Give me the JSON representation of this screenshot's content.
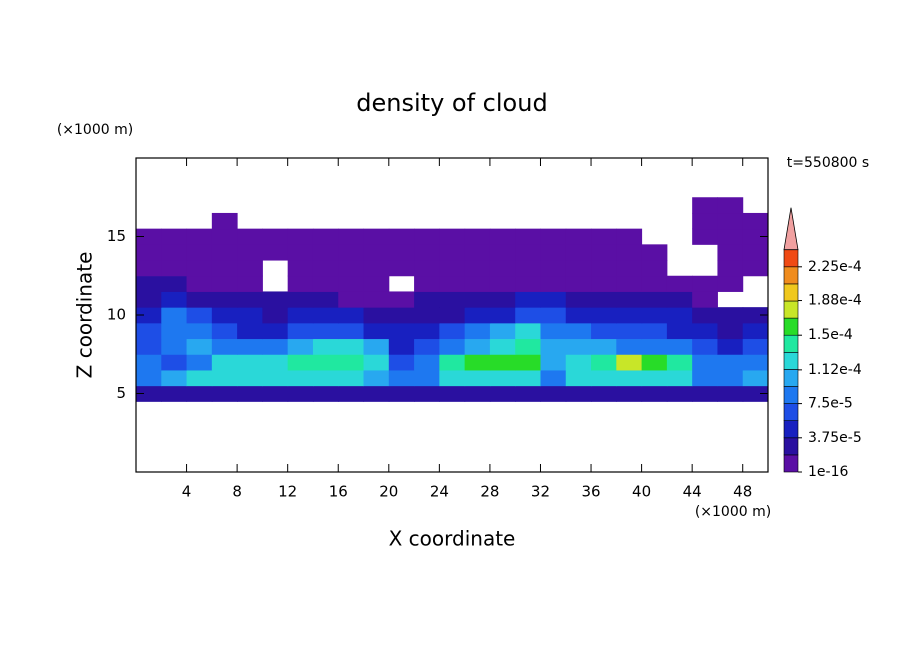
{
  "chart_data": {
    "type": "contour",
    "title": "density of cloud",
    "x_label": "X coordinate",
    "y_label": "Z coordinate",
    "x_unit_label": "(×1000 m)",
    "y_unit_label": "(×1000 m)",
    "time_label": "t=550800 s",
    "xlim": [
      0,
      50
    ],
    "ylim": [
      0,
      20
    ],
    "xticks": [
      4,
      8,
      12,
      16,
      20,
      24,
      28,
      32,
      36,
      40,
      44,
      48
    ],
    "yticks": [
      5,
      10,
      15
    ],
    "x": [
      1,
      3,
      5,
      7,
      9,
      11,
      13,
      15,
      17,
      19,
      21,
      23,
      25,
      27,
      29,
      31,
      33,
      35,
      37,
      39,
      41,
      43,
      45,
      47,
      49
    ],
    "y": [
      5,
      6,
      7,
      8,
      9,
      10,
      11,
      12,
      13,
      14,
      15,
      16,
      17
    ],
    "z": [
      [
        3e-05,
        3e-05,
        3e-05,
        3e-05,
        3e-05,
        3e-05,
        3e-05,
        3e-05,
        3e-05,
        3e-05,
        3e-05,
        3e-05,
        3e-05,
        3e-05,
        3e-05,
        3e-05,
        3e-05,
        3e-05,
        3e-05,
        3e-05,
        3e-05,
        3e-05,
        3e-05,
        3e-05,
        3e-05
      ],
      [
        8e-05,
        0.0001,
        0.00012,
        0.00012,
        0.00012,
        0.00012,
        0.00012,
        0.00012,
        0.00012,
        0.0001,
        8e-05,
        8e-05,
        0.00012,
        0.00012,
        0.00012,
        0.00012,
        8e-05,
        0.00012,
        0.00012,
        0.00012,
        0.00012,
        0.00012,
        8e-05,
        8e-05,
        0.0001
      ],
      [
        8e-05,
        6e-05,
        8e-05,
        0.00012,
        0.00012,
        0.00012,
        0.00014,
        0.00014,
        0.00014,
        0.00012,
        6e-05,
        8e-05,
        0.00014,
        0.00016,
        0.00016,
        0.00016,
        0.0001,
        0.00012,
        0.00014,
        0.00018,
        0.00016,
        0.00014,
        8e-05,
        8e-05,
        8e-05
      ],
      [
        6e-05,
        8e-05,
        0.0001,
        8e-05,
        8e-05,
        8e-05,
        0.0001,
        0.00012,
        0.00012,
        0.0001,
        5e-05,
        6e-05,
        8e-05,
        0.0001,
        0.00012,
        0.00014,
        0.0001,
        0.0001,
        0.0001,
        8e-05,
        8e-05,
        8e-05,
        6e-05,
        5e-05,
        6e-05
      ],
      [
        6e-05,
        8e-05,
        8e-05,
        6e-05,
        5e-05,
        5e-05,
        6e-05,
        6e-05,
        6e-05,
        5e-05,
        5e-05,
        5e-05,
        6e-05,
        8e-05,
        0.0001,
        0.00012,
        8e-05,
        8e-05,
        6e-05,
        6e-05,
        6e-05,
        5e-05,
        5e-05,
        3e-05,
        5e-05
      ],
      [
        5e-05,
        8e-05,
        6e-05,
        5e-05,
        5e-05,
        3e-05,
        5e-05,
        5e-05,
        5e-05,
        3e-05,
        3e-05,
        3e-05,
        3e-05,
        5e-05,
        5e-05,
        6e-05,
        6e-05,
        5e-05,
        5e-05,
        5e-05,
        5e-05,
        5e-05,
        3e-05,
        3e-05,
        3e-05
      ],
      [
        3e-05,
        5e-05,
        3e-05,
        3e-05,
        3e-05,
        3e-05,
        3e-05,
        3e-05,
        1e-05,
        1e-05,
        1e-05,
        3e-05,
        3e-05,
        3e-05,
        3e-05,
        5e-05,
        5e-05,
        3e-05,
        3e-05,
        3e-05,
        3e-05,
        3e-05,
        1e-05,
        null,
        null
      ],
      [
        3e-05,
        3e-05,
        1e-05,
        1e-05,
        1e-05,
        null,
        1e-05,
        1e-05,
        1e-05,
        1e-05,
        null,
        1e-05,
        1e-05,
        1e-05,
        1e-05,
        1e-05,
        1e-05,
        1e-05,
        1e-05,
        1e-05,
        1e-05,
        1e-05,
        1e-05,
        1e-05,
        null
      ],
      [
        1e-05,
        1e-05,
        1e-05,
        1e-05,
        1e-05,
        null,
        1e-05,
        1e-05,
        1e-05,
        1e-05,
        1e-05,
        1e-05,
        1e-05,
        1e-05,
        1e-05,
        1e-05,
        1e-05,
        1e-05,
        1e-05,
        1e-05,
        1e-05,
        null,
        null,
        1e-05,
        1e-05
      ],
      [
        1e-05,
        1e-05,
        1e-05,
        1e-05,
        1e-05,
        1e-05,
        1e-05,
        1e-05,
        1e-05,
        1e-05,
        1e-05,
        1e-05,
        1e-05,
        1e-05,
        1e-05,
        1e-05,
        1e-05,
        1e-05,
        1e-05,
        1e-05,
        1e-05,
        null,
        null,
        1e-05,
        1e-05
      ],
      [
        1e-05,
        1e-05,
        1e-05,
        1e-05,
        1e-05,
        1e-05,
        1e-05,
        1e-05,
        1e-05,
        1e-05,
        1e-05,
        1e-05,
        1e-05,
        1e-05,
        1e-05,
        1e-05,
        1e-05,
        1e-05,
        1e-05,
        1e-05,
        null,
        null,
        1e-05,
        1e-05,
        1e-05
      ],
      [
        null,
        null,
        null,
        1e-05,
        null,
        null,
        null,
        null,
        null,
        null,
        null,
        null,
        null,
        null,
        null,
        null,
        null,
        null,
        null,
        null,
        null,
        null,
        1e-05,
        1e-05,
        1e-05
      ],
      [
        null,
        null,
        null,
        null,
        null,
        null,
        null,
        null,
        null,
        null,
        null,
        null,
        null,
        null,
        null,
        null,
        null,
        null,
        null,
        null,
        null,
        null,
        1e-05,
        1e-05,
        null
      ]
    ],
    "levels": [
      1e-16,
      1.875e-05,
      3.75e-05,
      5.625e-05,
      7.5e-05,
      9.375e-05,
      0.0001125,
      0.00013125,
      0.00015,
      0.00016875,
      0.0001875,
      0.00020625,
      0.000225,
      0.00024375
    ],
    "colors": [
      "#5a0fa5",
      "#2a10a0",
      "#1820c0",
      "#1e4ee6",
      "#1e78f0",
      "#28a8f0",
      "#2ad8d8",
      "#20e8a0",
      "#28dc28",
      "#c8e628",
      "#f0c81e",
      "#f08c1e",
      "#f04a14"
    ],
    "extend_color": "#f0a0a0",
    "colorbar_ticks": [
      {
        "value": 1e-16,
        "label": "1e-16"
      },
      {
        "value": 3.75e-05,
        "label": "3.75e-5"
      },
      {
        "value": 7.5e-05,
        "label": "7.5e-5"
      },
      {
        "value": 0.000112,
        "label": "1.12e-4"
      },
      {
        "value": 0.00015,
        "label": "1.5e-4"
      },
      {
        "value": 0.000188,
        "label": "1.88e-4"
      },
      {
        "value": 0.000225,
        "label": "2.25e-4"
      }
    ]
  }
}
